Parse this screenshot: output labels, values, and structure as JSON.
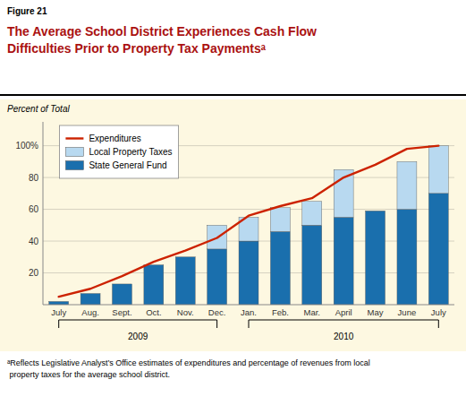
{
  "chart_data": {
    "type": "bar",
    "stacked": true,
    "subtitle": "Figure 21",
    "title": "The Average School District Experiences Cash Flow\nDifficulties Prior to Property Tax Paymentsᵃ",
    "ylabel": "Percent of Total",
    "footnote": "ᵃReflects Legislative Analyst’s Office estimates of expenditures and percentage of revenues from local\n property taxes for the average school district.",
    "categories": [
      "July",
      "Aug.",
      "Sept.",
      "Oct.",
      "Nov.",
      "Dec.",
      "Jan.",
      "Feb.",
      "Mar.",
      "April",
      "May",
      "June",
      "July"
    ],
    "series": [
      {
        "name": "State General Fund",
        "type": "bar",
        "color": "#1a6fad",
        "values": [
          2,
          7,
          13,
          25,
          30,
          35,
          40,
          46,
          50,
          55,
          59,
          60,
          70
        ]
      },
      {
        "name": "Local Property Taxes",
        "type": "bar",
        "color": "#b8d9f0",
        "values": [
          0,
          0,
          0,
          0,
          0,
          15,
          15,
          15,
          15,
          30,
          0,
          30,
          30
        ]
      },
      {
        "name": "Expenditures",
        "type": "line",
        "color": "#cc2200",
        "values": [
          5,
          10,
          18,
          27,
          34,
          42,
          56,
          62,
          67,
          80,
          88,
          98,
          100
        ]
      }
    ],
    "ylim": [
      0,
      115
    ],
    "yticks": [
      20,
      40,
      60,
      80,
      {
        "value": 100,
        "label": "100%"
      }
    ],
    "grid": true,
    "legend": "upper left",
    "annotations": [
      {
        "text": "2009",
        "span": [
          0,
          5
        ]
      },
      {
        "text": "2010",
        "span": [
          6,
          12
        ]
      }
    ]
  }
}
